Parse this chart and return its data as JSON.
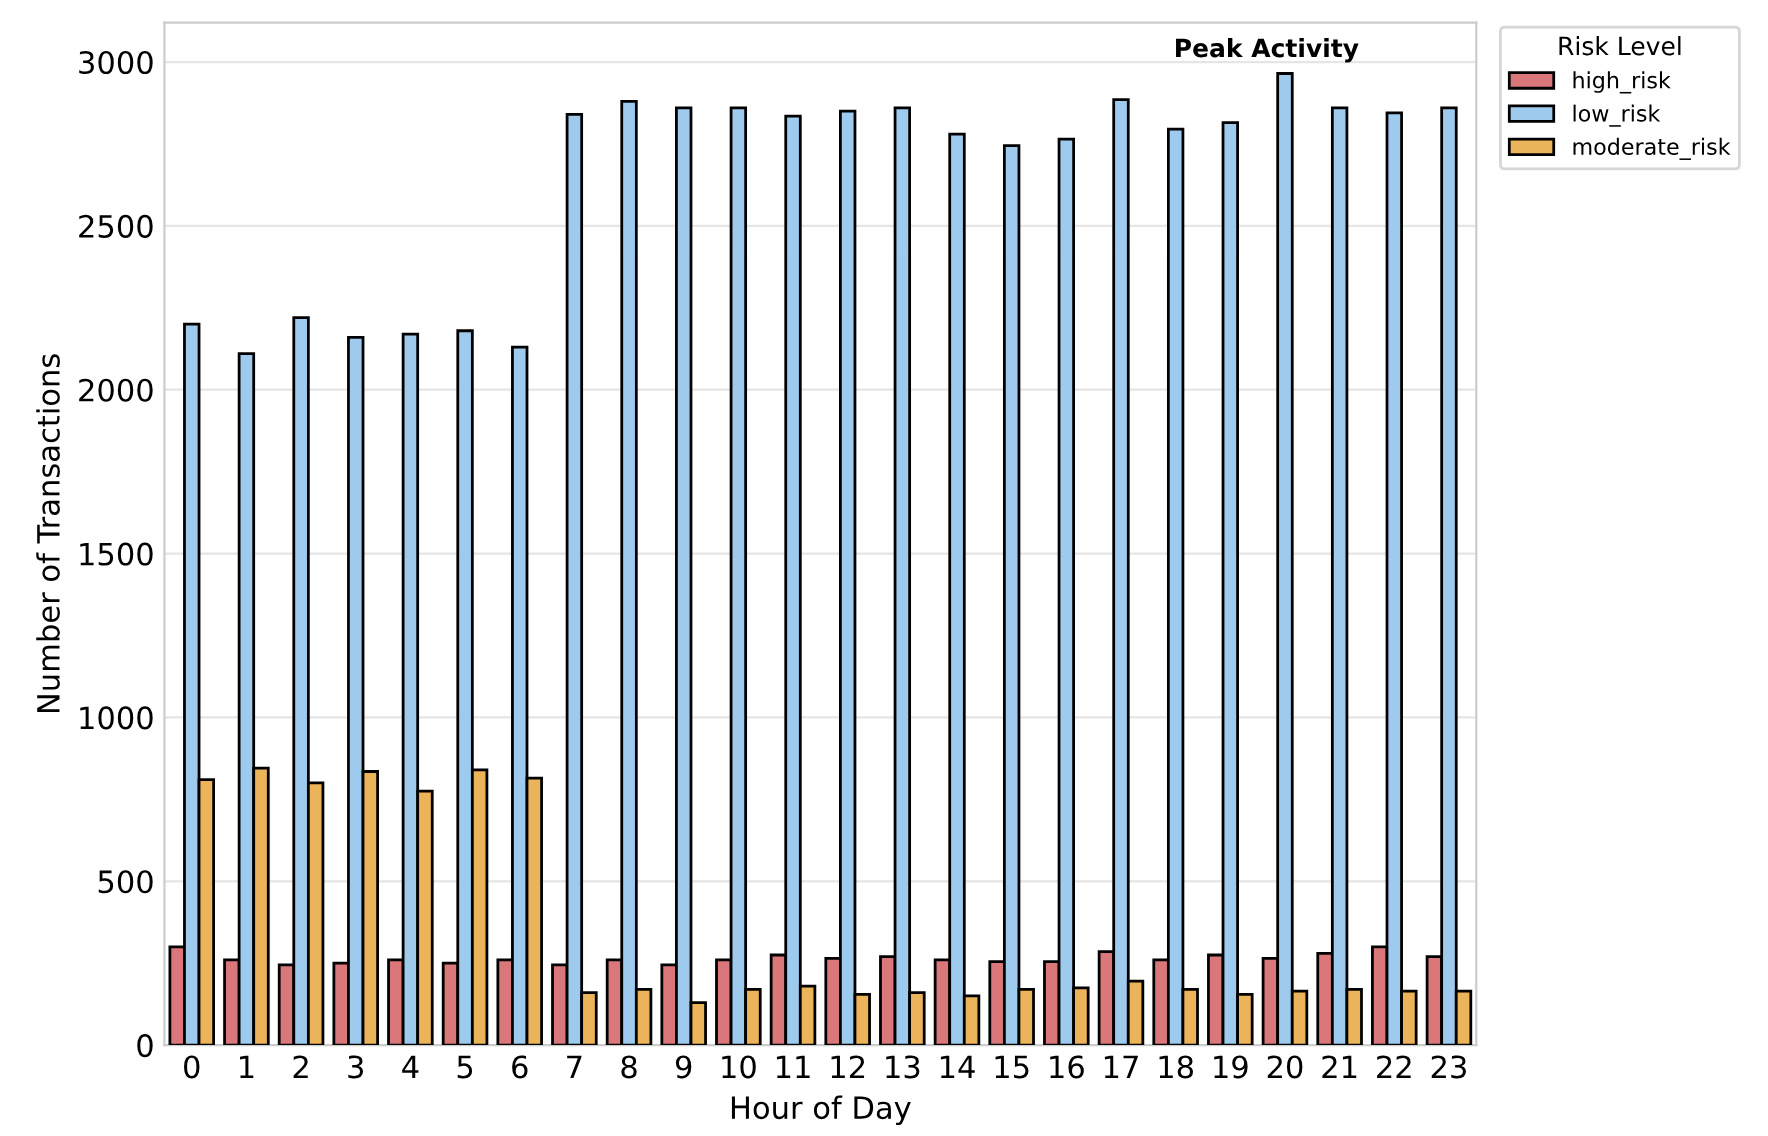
{
  "chart_data": {
    "type": "bar",
    "xlabel": "Hour of Day",
    "ylabel": "Number of Transactions",
    "legend_title": "Risk Level",
    "categories": [
      "0",
      "1",
      "2",
      "3",
      "4",
      "5",
      "6",
      "7",
      "8",
      "9",
      "10",
      "11",
      "12",
      "13",
      "14",
      "15",
      "16",
      "17",
      "18",
      "19",
      "20",
      "21",
      "22",
      "23"
    ],
    "series": [
      {
        "name": "high_risk",
        "color": "#d9777a",
        "values": [
          300,
          260,
          245,
          250,
          260,
          250,
          260,
          245,
          260,
          245,
          260,
          275,
          265,
          270,
          260,
          255,
          255,
          285,
          260,
          275,
          265,
          280,
          300,
          270
        ]
      },
      {
        "name": "low_risk",
        "color": "#9ecaee",
        "values": [
          2200,
          2110,
          2220,
          2160,
          2170,
          2180,
          2130,
          2840,
          2880,
          2860,
          2860,
          2835,
          2850,
          2860,
          2780,
          2745,
          2765,
          2885,
          2795,
          2815,
          2965,
          2860,
          2845,
          2860
        ]
      },
      {
        "name": "moderate_risk",
        "color": "#ebb35a",
        "values": [
          810,
          845,
          800,
          835,
          775,
          840,
          815,
          160,
          170,
          130,
          170,
          180,
          155,
          160,
          150,
          170,
          175,
          195,
          170,
          155,
          165,
          170,
          165,
          165
        ]
      }
    ],
    "annotations": [
      "Peak Activity"
    ],
    "ylim": [
      0,
      3120
    ],
    "yticks": [
      0,
      500,
      1000,
      1500,
      2000,
      2500,
      3000
    ],
    "grid": "y",
    "legend": "top right"
  }
}
